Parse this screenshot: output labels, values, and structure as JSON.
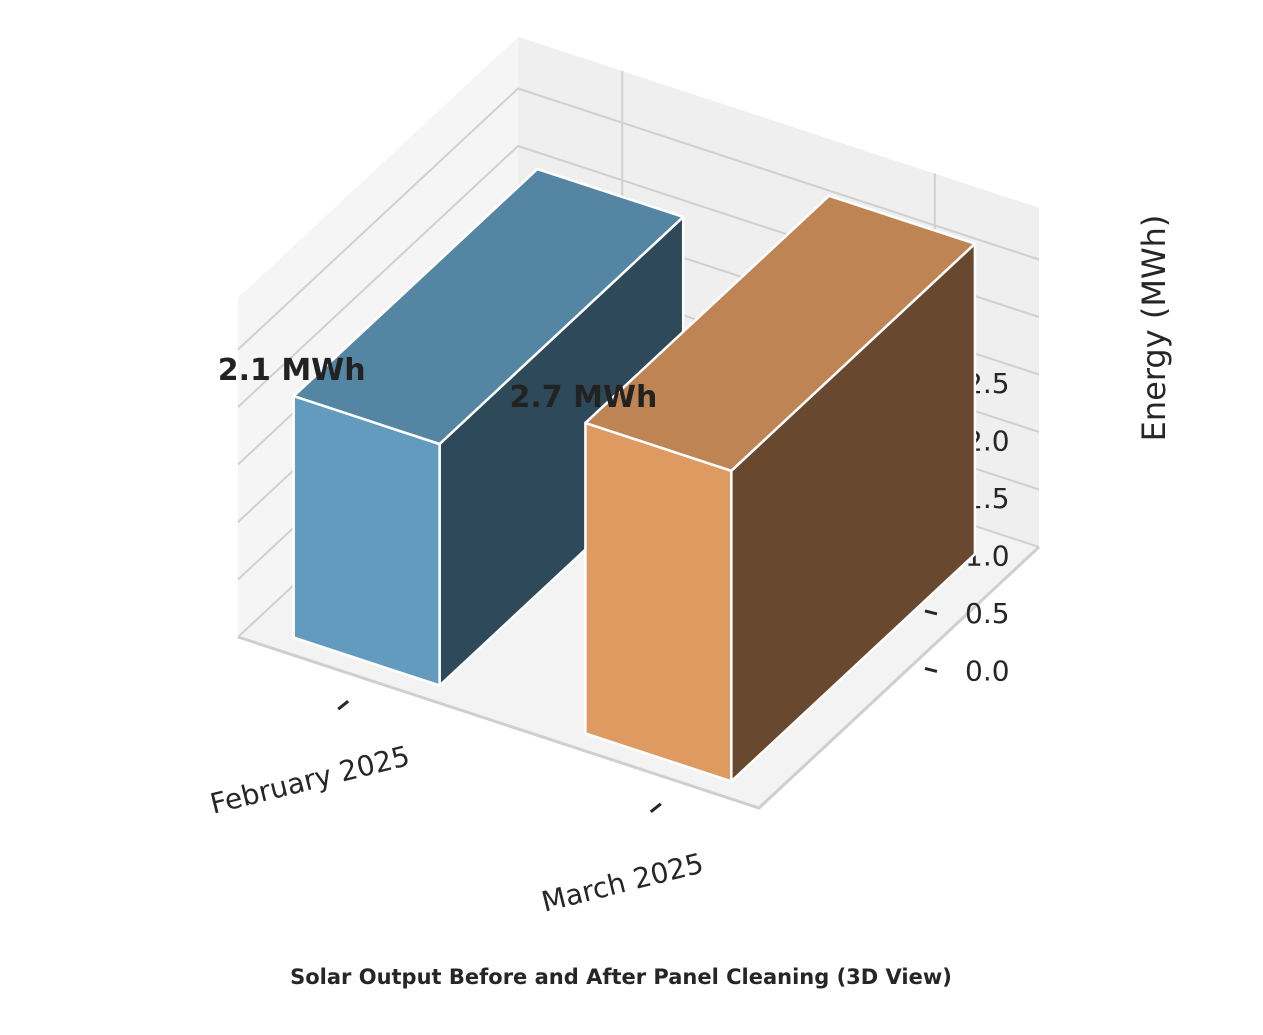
{
  "chart_data": {
    "type": "bar",
    "projection": "3d",
    "title": "Solar Output Before and After Panel Cleaning (3D View)",
    "xlabel": "",
    "ylabel": "Energy (MWh)",
    "categories": [
      "February 2025",
      "March 2025"
    ],
    "values": [
      2.1,
      2.7
    ],
    "value_labels": [
      "2.1 MWh",
      "2.7 MWh"
    ],
    "colors": [
      "#629bbe",
      "#de9a61"
    ],
    "zlim": [
      0,
      2.7
    ],
    "z_ticks": [
      0.0,
      0.5,
      1.0,
      1.5,
      2.0,
      2.5
    ],
    "z_tick_labels": [
      "0.0",
      "0.5",
      "1.0",
      "1.5",
      "2.0",
      "2.5"
    ],
    "grid": true
  }
}
